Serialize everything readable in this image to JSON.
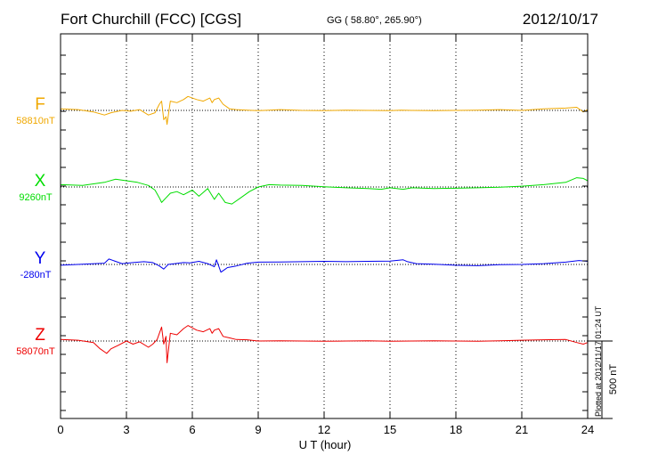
{
  "header": {
    "station": "Fort Churchill (FCC)  [CGS]",
    "coords": "GG ( 58.80°, 265.90°)",
    "date": "2012/10/17"
  },
  "footnote": "Plotted at 2012/11/17 01:24  UT",
  "chart_data": {
    "type": "line",
    "xlabel": "U T (hour)",
    "xlim": [
      0,
      24
    ],
    "xticks": [
      0,
      3,
      6,
      9,
      12,
      15,
      18,
      21,
      24
    ],
    "scale_bar": {
      "label": "500 nT",
      "value": 500
    },
    "series": [
      {
        "name": "F",
        "baseline_label": "58810nT",
        "color": "#f0a800",
        "baseline": 58810,
        "x": [
          0,
          0.8,
          1.5,
          2.0,
          2.3,
          2.8,
          3.2,
          3.6,
          4.0,
          4.3,
          4.5,
          4.6,
          4.7,
          4.8,
          4.85,
          5.0,
          5.3,
          5.6,
          5.8,
          6.2,
          6.5,
          6.8,
          6.9,
          7.0,
          7.2,
          7.4,
          7.7,
          8.0,
          8.5,
          9.0,
          9.5,
          10,
          11,
          12,
          13,
          14,
          15,
          15.5,
          16,
          17,
          18,
          19,
          20,
          21,
          22,
          23,
          23.5,
          23.8,
          24
        ],
        "y": [
          58820,
          58815,
          58800,
          58780,
          58795,
          58810,
          58805,
          58815,
          58780,
          58795,
          58850,
          58870,
          58750,
          58770,
          58720,
          58870,
          58860,
          58880,
          58900,
          58880,
          58870,
          58890,
          58860,
          58880,
          58890,
          58850,
          58820,
          58815,
          58812,
          58808,
          58812,
          58815,
          58810,
          58808,
          58812,
          58810,
          58808,
          58812,
          58810,
          58808,
          58810,
          58812,
          58815,
          58810,
          58820,
          58825,
          58830,
          58800,
          58815
        ]
      },
      {
        "name": "X",
        "baseline_label": "9260nT",
        "color": "#00dd00",
        "baseline": 9260,
        "x": [
          0,
          1.0,
          2.0,
          2.5,
          3.0,
          3.5,
          4.0,
          4.3,
          4.5,
          4.6,
          4.8,
          5.0,
          5.3,
          5.6,
          6.0,
          6.3,
          6.7,
          7.0,
          7.2,
          7.5,
          7.8,
          8.2,
          8.6,
          9.0,
          9.5,
          10,
          11,
          12,
          13,
          14,
          14.6,
          15,
          15.6,
          16,
          17,
          18,
          19,
          20,
          21,
          22,
          23,
          23.5,
          23.8,
          24
        ],
        "y": [
          9275,
          9270,
          9290,
          9310,
          9300,
          9290,
          9270,
          9240,
          9190,
          9160,
          9190,
          9220,
          9230,
          9210,
          9240,
          9200,
          9250,
          9180,
          9220,
          9160,
          9150,
          9190,
          9230,
          9260,
          9275,
          9272,
          9270,
          9262,
          9255,
          9250,
          9245,
          9255,
          9245,
          9255,
          9250,
          9252,
          9255,
          9258,
          9265,
          9275,
          9290,
          9320,
          9315,
          9300
        ]
      },
      {
        "name": "Y",
        "baseline_label": "-280nT",
        "color": "#0000ee",
        "baseline": -280,
        "x": [
          0,
          1.0,
          2.0,
          2.2,
          2.8,
          3.3,
          3.8,
          4.2,
          4.5,
          4.7,
          4.9,
          5.2,
          5.6,
          5.9,
          6.3,
          6.7,
          7.0,
          7.1,
          7.3,
          7.6,
          8.0,
          8.5,
          9.0,
          10,
          11,
          12,
          13,
          14,
          15,
          15.6,
          15.8,
          16.2,
          17,
          18,
          19,
          20,
          21,
          22,
          23,
          23.6,
          24
        ],
        "y": [
          -285,
          -278,
          -272,
          -245,
          -275,
          -268,
          -262,
          -268,
          -290,
          -310,
          -280,
          -275,
          -268,
          -270,
          -260,
          -275,
          -295,
          -250,
          -330,
          -300,
          -290,
          -272,
          -265,
          -264,
          -262,
          -260,
          -262,
          -260,
          -258,
          -250,
          -262,
          -275,
          -278,
          -285,
          -288,
          -282,
          -280,
          -275,
          -265,
          -255,
          -260
        ]
      },
      {
        "name": "Z",
        "baseline_label": "58070nT",
        "color": "#ee0000",
        "baseline": 58070,
        "x": [
          0,
          0.8,
          1.5,
          1.8,
          2.1,
          2.3,
          2.6,
          3.0,
          3.3,
          3.6,
          4.0,
          4.2,
          4.4,
          4.6,
          4.7,
          4.8,
          4.85,
          5.0,
          5.3,
          5.6,
          5.8,
          6.2,
          6.5,
          6.8,
          6.9,
          7.0,
          7.2,
          7.4,
          7.7,
          8.0,
          8.5,
          9.0,
          10,
          11,
          12,
          13,
          14,
          15,
          16,
          17,
          18,
          19,
          20,
          21,
          22,
          23,
          23.5,
          23.8,
          24
        ],
        "y": [
          58080,
          58075,
          58060,
          58020,
          57990,
          58020,
          58040,
          58070,
          58050,
          58065,
          58030,
          58050,
          58080,
          58160,
          58050,
          58100,
          57930,
          58120,
          58110,
          58150,
          58170,
          58140,
          58130,
          58150,
          58120,
          58140,
          58150,
          58100,
          58090,
          58080,
          58078,
          58070,
          58072,
          58070,
          58068,
          58070,
          58072,
          58068,
          58070,
          58072,
          58070,
          58068,
          58072,
          58075,
          58078,
          58080,
          58060,
          58050,
          58060
        ]
      }
    ]
  }
}
